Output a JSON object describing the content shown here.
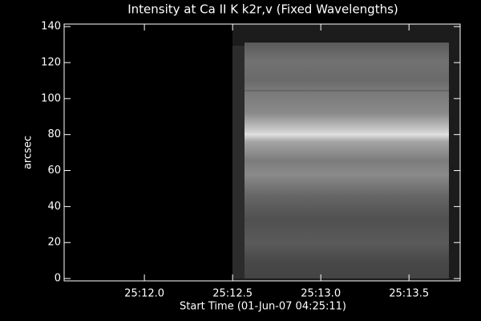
{
  "chart_data": {
    "type": "image",
    "title": "Intensity at Ca II K k2r,v (Fixed Wavelengths)",
    "xlabel": "Start Time (01-Jun-07 04:25:11)",
    "ylabel": "arcsec",
    "xlim": [
      0.545,
      2.79
    ],
    "xticks": [
      {
        "value": 1.0,
        "label": "25:12.0"
      },
      {
        "value": 1.5,
        "label": "25:12.5"
      },
      {
        "value": 2.0,
        "label": "25:13.0"
      },
      {
        "value": 2.5,
        "label": "25:13.5"
      }
    ],
    "ylim": [
      -1.3,
      141.4
    ],
    "yticks": [
      0,
      20,
      40,
      60,
      80,
      100,
      120,
      140
    ],
    "color": "#ffffff"
  }
}
